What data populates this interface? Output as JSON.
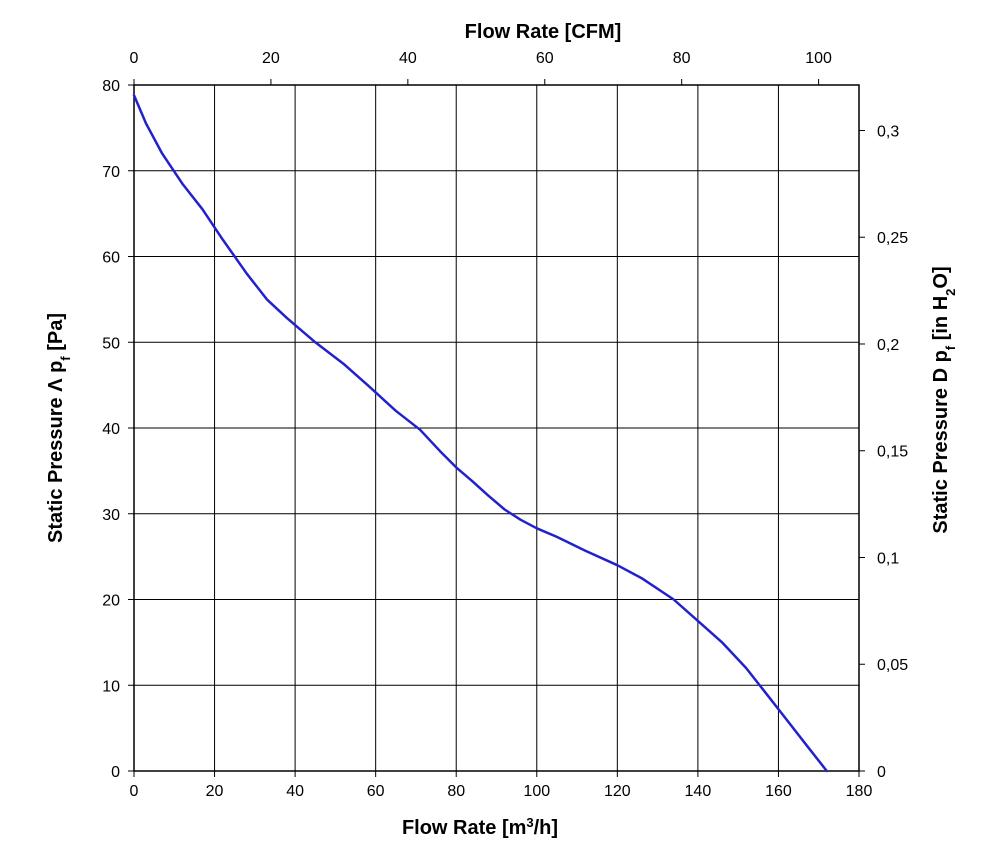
{
  "chart_data": {
    "type": "line",
    "x_bottom": {
      "label_main": "Flow Rate [m",
      "label_sup": "3",
      "label_end": "/h]",
      "range": [
        0,
        180
      ],
      "ticks": [
        "0",
        "20",
        "40",
        "60",
        "80",
        "100",
        "120",
        "140",
        "160",
        "180"
      ]
    },
    "x_top": {
      "label": "Flow Rate [CFM]",
      "range": [
        0,
        105.9
      ],
      "ticks": [
        "0",
        "20",
        "40",
        "60",
        "80",
        "100"
      ]
    },
    "y_left": {
      "label_main": "Static Pressure Λ p",
      "label_sub": "f",
      "label_end": " [Pa]",
      "range": [
        0,
        80
      ],
      "ticks": [
        "0",
        "10",
        "20",
        "30",
        "40",
        "50",
        "60",
        "70",
        "80"
      ]
    },
    "y_right": {
      "label_main": "Static Pressure D p",
      "label_sub": "f",
      "label_mid": " [in H",
      "label_sub2": "2",
      "label_end": "O]",
      "range": [
        0,
        0.3213
      ],
      "ticks": [
        "0",
        "0,05",
        "0,1",
        "0,15",
        "0,2",
        "0,25",
        "0,3"
      ]
    },
    "grid": true,
    "series": [
      {
        "color": "#2222cc",
        "x": [
          0,
          3,
          7,
          12,
          17,
          22,
          28,
          33,
          38,
          45,
          52,
          58,
          65,
          71,
          76,
          80,
          84,
          88,
          92,
          96,
          100,
          105,
          112,
          120,
          126,
          134,
          140,
          146,
          152,
          157,
          162,
          167,
          172
        ],
        "y": [
          78.8,
          75.5,
          72,
          68.5,
          65.5,
          62,
          58,
          55,
          52.8,
          50,
          47.5,
          45,
          42,
          39.8,
          37.3,
          35.4,
          33.8,
          32.1,
          30.5,
          29.3,
          28.3,
          27.3,
          25.7,
          24.0,
          22.5,
          20,
          17.5,
          15,
          12,
          9,
          6,
          3,
          0
        ]
      }
    ]
  }
}
